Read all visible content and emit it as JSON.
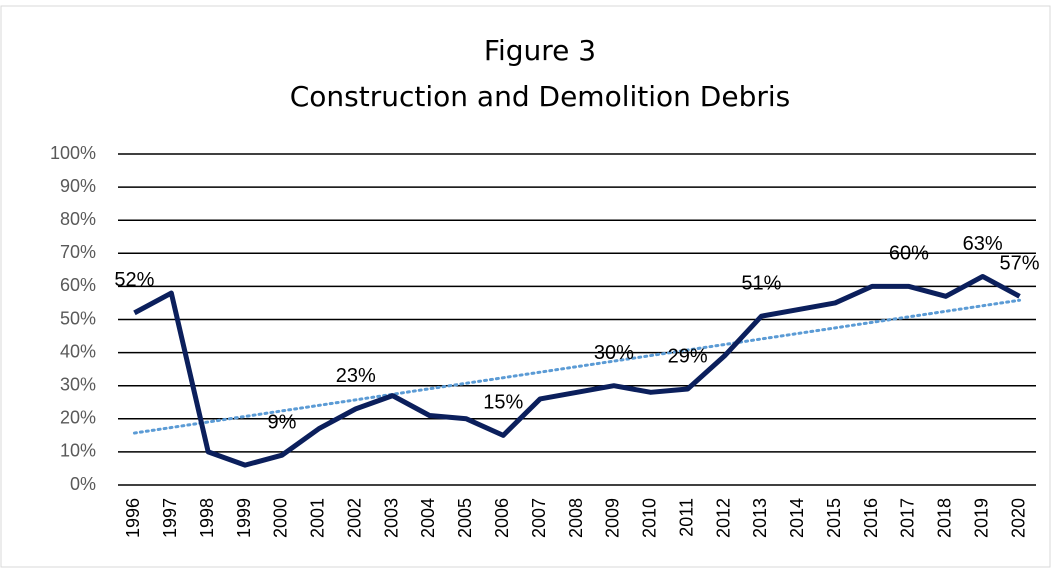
{
  "chart_data": {
    "type": "line",
    "title": [
      "Figure 3",
      "Construction and Demolition Debris"
    ],
    "categories": [
      "1996",
      "1997",
      "1998",
      "1999",
      "2000",
      "2001",
      "2002",
      "2003",
      "2004",
      "2005",
      "2006",
      "2007",
      "2008",
      "2009",
      "2010",
      "2011",
      "2012",
      "2013",
      "2014",
      "2015",
      "2016",
      "2017",
      "2018",
      "2019",
      "2020"
    ],
    "series": [
      {
        "color": "#0b1f5c",
        "values": [
          52,
          58,
          10,
          6,
          9,
          17,
          23,
          27,
          21,
          20,
          15,
          26,
          28,
          30,
          28,
          29,
          39,
          51,
          53,
          55,
          60,
          60,
          57,
          63,
          57
        ],
        "value_labels": [
          "52%",
          null,
          null,
          null,
          "9%",
          null,
          "23%",
          null,
          null,
          null,
          "15%",
          null,
          null,
          "30%",
          null,
          "29%",
          null,
          "51%",
          null,
          null,
          null,
          "60%",
          null,
          "63%",
          "57%"
        ]
      }
    ],
    "trendline": {
      "type": "linear",
      "color": "#5b9bd5"
    },
    "ylim": [
      0,
      100
    ],
    "yticks": [
      {
        "value": 0,
        "label": "0%"
      },
      {
        "value": 10,
        "label": "10%"
      },
      {
        "value": 20,
        "label": "20%"
      },
      {
        "value": 30,
        "label": "30%"
      },
      {
        "value": 40,
        "label": "40%"
      },
      {
        "value": 50,
        "label": "50%"
      },
      {
        "value": 60,
        "label": "60%"
      },
      {
        "value": 70,
        "label": "70%"
      },
      {
        "value": 80,
        "label": "80%"
      },
      {
        "value": 90,
        "label": "90%"
      },
      {
        "value": 100,
        "label": "100%"
      }
    ],
    "grid": true
  }
}
